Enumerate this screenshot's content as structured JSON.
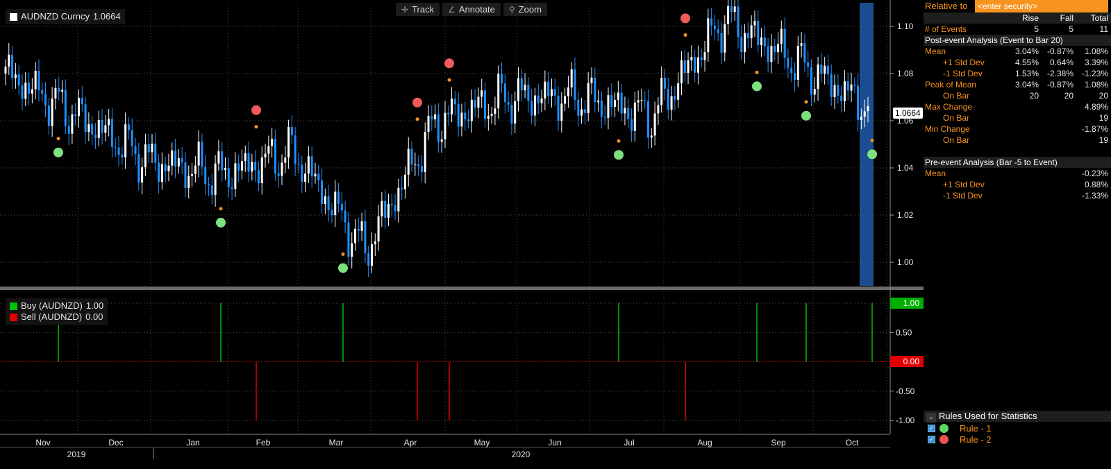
{
  "security": {
    "name": "AUDNZD Curncy",
    "last": "1.0664"
  },
  "toolbar": {
    "track": "Track",
    "annotate": "Annotate",
    "zoom": "Zoom"
  },
  "colors": {
    "up_candle": "#ffffff",
    "down_candle": "#1e90ff",
    "buy": "#00c000",
    "sell": "#e00000",
    "accent": "#f7931e",
    "highlight": "#1e5aa8"
  },
  "chart_data": [
    {
      "type": "line",
      "title": "AUDNZD Curncy",
      "y_ticks": [
        "1.10",
        "1.08",
        "1.06",
        "1.04",
        "1.02",
        "1.00"
      ],
      "ylim": [
        0.99,
        1.11
      ],
      "x_ticks": [
        "Nov",
        "Dec",
        "Jan",
        "Feb",
        "Mar",
        "Apr",
        "May",
        "Jun",
        "Jul",
        "Aug",
        "Sep",
        "Oct"
      ],
      "year_labels": [
        "2019",
        "2020"
      ],
      "series": [
        {
          "name": "AUDNZD Curncy",
          "x": [
            "Oct",
            "Nov",
            "Dec",
            "Jan",
            "Feb",
            "Mar",
            "Apr",
            "May",
            "Jun",
            "Jul",
            "Aug",
            "Sep",
            "Oct"
          ],
          "values": [
            1.08,
            1.062,
            1.043,
            1.037,
            1.047,
            1.005,
            1.06,
            1.07,
            1.07,
            1.062,
            1.103,
            1.085,
            1.066
          ]
        }
      ],
      "buy_events": [
        "Nov",
        "Jan",
        "Mar",
        "Jul",
        "Aug",
        "Sep",
        "Oct"
      ],
      "sell_events": [
        "Feb",
        "Apr",
        "Apr",
        "Aug"
      ]
    },
    {
      "type": "bar",
      "series": [
        {
          "name": "Buy (AUDNZD)",
          "last": "1.00"
        },
        {
          "name": "Sell (AUDNZD)",
          "last": "0.00"
        }
      ],
      "y_ticks": [
        "1.00",
        "0.50",
        "0.00",
        "-0.50",
        "-1.00"
      ],
      "ylim": [
        -1,
        1
      ]
    }
  ],
  "panel": {
    "relative_to": "Relative to",
    "security_placeholder": "<enter security>",
    "columns": [
      "Rise",
      "Fall",
      "Total"
    ],
    "events": {
      "label": "# of Events",
      "values": [
        "5",
        "5",
        "11"
      ]
    },
    "post_header": "Post-event Analysis (Event to Bar 20)",
    "post_rows": [
      {
        "label": "Mean",
        "orange": true,
        "values": [
          "3.04%",
          "-0.87%",
          "1.08%"
        ]
      },
      {
        "label": "+1 Std Dev",
        "indent": true,
        "values": [
          "4.55%",
          "0.64%",
          "3.39%"
        ]
      },
      {
        "label": "-1 Std Dev",
        "indent": true,
        "values": [
          "1.53%",
          "-2.38%",
          "-1.23%"
        ]
      },
      {
        "label": "Peak of Mean",
        "orange": true,
        "values": [
          "3.04%",
          "-0.87%",
          "1.08%"
        ]
      },
      {
        "label": "On Bar",
        "indent": true,
        "values": [
          "20",
          "20",
          "20"
        ]
      },
      {
        "label": "Max Change",
        "orange": true,
        "values": [
          "",
          "",
          "4.89%"
        ]
      },
      {
        "label": "On Bar",
        "indent": true,
        "values": [
          "",
          "",
          "19"
        ]
      },
      {
        "label": "Min Change",
        "orange": true,
        "values": [
          "",
          "",
          "-1.87%"
        ]
      },
      {
        "label": "On Bar",
        "indent": true,
        "values": [
          "",
          "",
          "19"
        ]
      }
    ],
    "pre_header": "Pre-event Analysis (Bar -5 to Event)",
    "pre_rows": [
      {
        "label": "Mean",
        "orange": true,
        "values": [
          "",
          "",
          "-0.23%"
        ]
      },
      {
        "label": "+1 Std Dev",
        "indent": true,
        "values": [
          "",
          "",
          "0.88%"
        ]
      },
      {
        "label": "-1 Std Dev",
        "indent": true,
        "values": [
          "",
          "",
          "-1.33%"
        ]
      }
    ],
    "rules_header": "Rules Used for Statistics",
    "rules": [
      "Rule - 1",
      "Rule - 2"
    ]
  }
}
